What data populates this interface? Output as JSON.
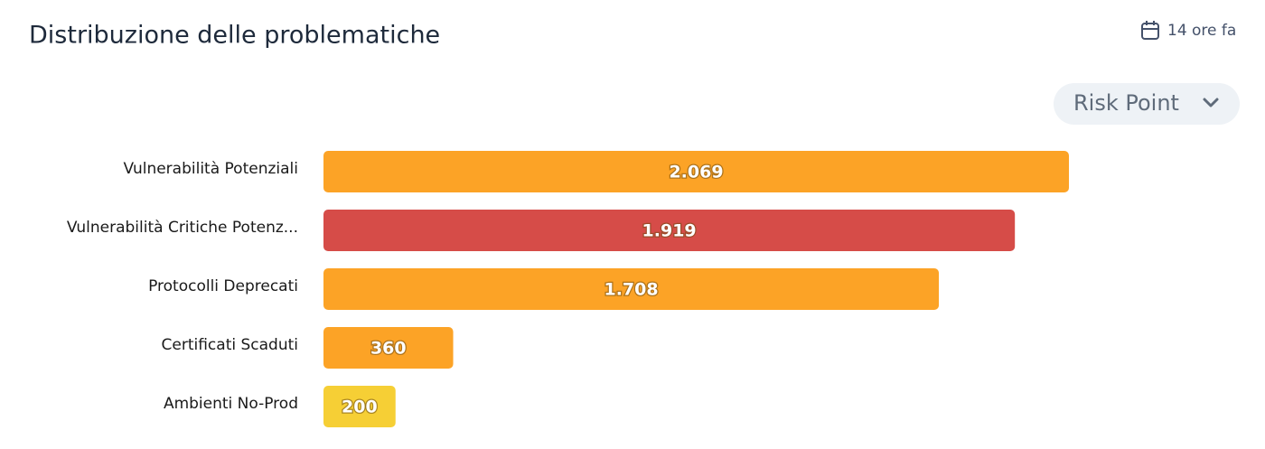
{
  "chart_data": {
    "type": "bar",
    "orientation": "horizontal",
    "title": "Distribuzione delle problematiche",
    "updated": "14 ore fa",
    "dropdown": "Risk Point",
    "categories": [
      "Vulnerabilità Potenziali",
      "Vulnerabilità Critiche Potenz...",
      "Protocolli Deprecati",
      "Certificati Scaduti",
      "Ambienti No-Prod"
    ],
    "values": [
      2069,
      1919,
      1708,
      360,
      200
    ],
    "value_labels": [
      "2.069",
      "1.919",
      "1.708",
      "360",
      "200"
    ],
    "colors": [
      "#fca326",
      "#d64c48",
      "#fca326",
      "#fca326",
      "#f6cf35"
    ]
  }
}
